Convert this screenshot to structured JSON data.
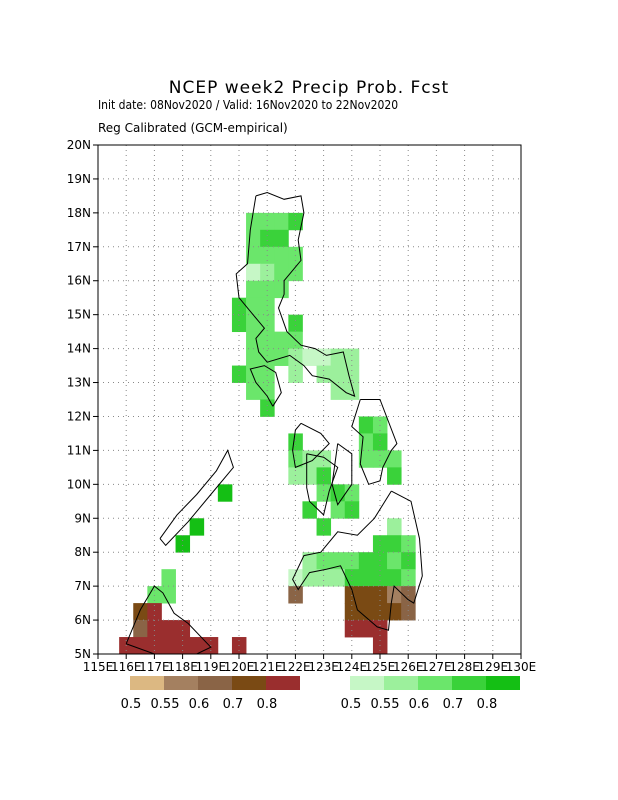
{
  "title": "NCEP week2 Precip Prob. Fcst",
  "subtitle": "Init date: 08Nov2020 / Valid: 16Nov2020 to 22Nov2020",
  "subtitle2": "Reg Calibrated (GCM-empirical)",
  "map": {
    "lon_range": [
      115,
      130
    ],
    "lat_range": [
      5,
      20
    ],
    "grid_step_deg": 0.5,
    "gridlines": "dotted",
    "x_tick_labels": [
      "115E",
      "116E",
      "117E",
      "118E",
      "119E",
      "120E",
      "121E",
      "122E",
      "123E",
      "124E",
      "125E",
      "126E",
      "127E",
      "128E",
      "129E",
      "130E"
    ],
    "y_tick_labels": [
      "5N",
      "6N",
      "7N",
      "8N",
      "9N",
      "10N",
      "11N",
      "12N",
      "13N",
      "14N",
      "15N",
      "16N",
      "17N",
      "18N",
      "19N",
      "20N"
    ]
  },
  "legend_below": {
    "labels": [
      "0.5",
      "0.55",
      "0.6",
      "0.7",
      "0.8"
    ],
    "colors": [
      "#dcb882",
      "#a48060",
      "#8a6446",
      "#7a4a14",
      "#9a2e2e"
    ]
  },
  "legend_above": {
    "labels": [
      "0.5",
      "0.55",
      "0.6",
      "0.7",
      "0.8"
    ],
    "colors": [
      "#c6f7c6",
      "#9cf09c",
      "#6be66b",
      "#3ad23a",
      "#14bf14"
    ]
  },
  "cells": [
    {
      "lon": 120.5,
      "lat": 17.75,
      "v": "g3"
    },
    {
      "lon": 121.0,
      "lat": 17.75,
      "v": "g3"
    },
    {
      "lon": 121.5,
      "lat": 17.75,
      "v": "g3"
    },
    {
      "lon": 122.0,
      "lat": 17.75,
      "v": "g4"
    },
    {
      "lon": 120.5,
      "lat": 17.25,
      "v": "g3"
    },
    {
      "lon": 121.0,
      "lat": 17.25,
      "v": "g4"
    },
    {
      "lon": 121.5,
      "lat": 17.25,
      "v": "g4"
    },
    {
      "lon": 120.5,
      "lat": 16.75,
      "v": "g3"
    },
    {
      "lon": 121.0,
      "lat": 16.75,
      "v": "g3"
    },
    {
      "lon": 121.5,
      "lat": 16.75,
      "v": "g3"
    },
    {
      "lon": 122.0,
      "lat": 16.75,
      "v": "g3"
    },
    {
      "lon": 120.5,
      "lat": 16.25,
      "v": "g1"
    },
    {
      "lon": 121.0,
      "lat": 16.25,
      "v": "g2"
    },
    {
      "lon": 121.5,
      "lat": 16.25,
      "v": "g3"
    },
    {
      "lon": 122.0,
      "lat": 16.25,
      "v": "g3"
    },
    {
      "lon": 120.5,
      "lat": 15.75,
      "v": "g3"
    },
    {
      "lon": 121.0,
      "lat": 15.75,
      "v": "g3"
    },
    {
      "lon": 121.5,
      "lat": 15.75,
      "v": "g3"
    },
    {
      "lon": 120.0,
      "lat": 15.25,
      "v": "g4"
    },
    {
      "lon": 120.5,
      "lat": 15.25,
      "v": "g3"
    },
    {
      "lon": 121.0,
      "lat": 15.25,
      "v": "g3"
    },
    {
      "lon": 120.0,
      "lat": 14.75,
      "v": "g4"
    },
    {
      "lon": 120.5,
      "lat": 14.75,
      "v": "g3"
    },
    {
      "lon": 121.0,
      "lat": 14.75,
      "v": "g3"
    },
    {
      "lon": 122.0,
      "lat": 14.75,
      "v": "g4"
    },
    {
      "lon": 120.5,
      "lat": 14.25,
      "v": "g3"
    },
    {
      "lon": 121.0,
      "lat": 14.25,
      "v": "g3"
    },
    {
      "lon": 121.5,
      "lat": 14.25,
      "v": "g3"
    },
    {
      "lon": 122.0,
      "lat": 14.25,
      "v": "g3"
    },
    {
      "lon": 120.5,
      "lat": 13.75,
      "v": "g3"
    },
    {
      "lon": 121.0,
      "lat": 13.75,
      "v": "g3"
    },
    {
      "lon": 121.5,
      "lat": 13.75,
      "v": "g3"
    },
    {
      "lon": 122.0,
      "lat": 13.75,
      "v": "g2"
    },
    {
      "lon": 122.5,
      "lat": 13.75,
      "v": "g1"
    },
    {
      "lon": 123.0,
      "lat": 13.75,
      "v": "g1"
    },
    {
      "lon": 123.5,
      "lat": 13.75,
      "v": "g2"
    },
    {
      "lon": 124.0,
      "lat": 13.75,
      "v": "g2"
    },
    {
      "lon": 120.0,
      "lat": 13.25,
      "v": "g4"
    },
    {
      "lon": 120.5,
      "lat": 13.25,
      "v": "g3"
    },
    {
      "lon": 121.0,
      "lat": 13.25,
      "v": "g3"
    },
    {
      "lon": 122.0,
      "lat": 13.25,
      "v": "g2"
    },
    {
      "lon": 123.0,
      "lat": 13.25,
      "v": "g2"
    },
    {
      "lon": 123.5,
      "lat": 13.25,
      "v": "g2"
    },
    {
      "lon": 124.0,
      "lat": 13.25,
      "v": "g2"
    },
    {
      "lon": 120.5,
      "lat": 12.75,
      "v": "g3"
    },
    {
      "lon": 121.0,
      "lat": 12.75,
      "v": "g3"
    },
    {
      "lon": 123.5,
      "lat": 12.75,
      "v": "g2"
    },
    {
      "lon": 124.0,
      "lat": 12.75,
      "v": "g2"
    },
    {
      "lon": 121.0,
      "lat": 12.25,
      "v": "g4"
    },
    {
      "lon": 124.5,
      "lat": 11.75,
      "v": "g4"
    },
    {
      "lon": 125.0,
      "lat": 11.75,
      "v": "g3"
    },
    {
      "lon": 122.0,
      "lat": 11.25,
      "v": "g4"
    },
    {
      "lon": 124.5,
      "lat": 11.25,
      "v": "g3"
    },
    {
      "lon": 125.0,
      "lat": 11.25,
      "v": "g4"
    },
    {
      "lon": 122.0,
      "lat": 10.75,
      "v": "g3"
    },
    {
      "lon": 122.5,
      "lat": 10.75,
      "v": "g2"
    },
    {
      "lon": 123.0,
      "lat": 10.75,
      "v": "g2"
    },
    {
      "lon": 124.5,
      "lat": 10.75,
      "v": "g3"
    },
    {
      "lon": 125.0,
      "lat": 10.75,
      "v": "g3"
    },
    {
      "lon": 125.5,
      "lat": 10.75,
      "v": "g3"
    },
    {
      "lon": 122.0,
      "lat": 10.25,
      "v": "g2"
    },
    {
      "lon": 122.5,
      "lat": 10.25,
      "v": "g2"
    },
    {
      "lon": 123.0,
      "lat": 10.25,
      "v": "g4"
    },
    {
      "lon": 125.5,
      "lat": 10.25,
      "v": "g4"
    },
    {
      "lon": 123.0,
      "lat": 9.75,
      "v": "g3"
    },
    {
      "lon": 123.5,
      "lat": 9.75,
      "v": "g4"
    },
    {
      "lon": 124.0,
      "lat": 9.75,
      "v": "g3"
    },
    {
      "lon": 119.5,
      "lat": 9.75,
      "v": "g5"
    },
    {
      "lon": 122.5,
      "lat": 9.25,
      "v": "g4"
    },
    {
      "lon": 123.5,
      "lat": 9.25,
      "v": "g3"
    },
    {
      "lon": 124.0,
      "lat": 9.25,
      "v": "g4"
    },
    {
      "lon": 123.0,
      "lat": 8.75,
      "v": "g4"
    },
    {
      "lon": 118.5,
      "lat": 8.75,
      "v": "g5"
    },
    {
      "lon": 125.5,
      "lat": 8.75,
      "v": "g2"
    },
    {
      "lon": 118.0,
      "lat": 8.25,
      "v": "g5"
    },
    {
      "lon": 125.0,
      "lat": 8.25,
      "v": "g4"
    },
    {
      "lon": 125.5,
      "lat": 8.25,
      "v": "g4"
    },
    {
      "lon": 126.0,
      "lat": 8.25,
      "v": "g3"
    },
    {
      "lon": 122.5,
      "lat": 7.75,
      "v": "g2"
    },
    {
      "lon": 123.0,
      "lat": 7.75,
      "v": "g3"
    },
    {
      "lon": 123.5,
      "lat": 7.75,
      "v": "g3"
    },
    {
      "lon": 124.0,
      "lat": 7.75,
      "v": "g3"
    },
    {
      "lon": 124.5,
      "lat": 7.75,
      "v": "g4"
    },
    {
      "lon": 125.0,
      "lat": 7.75,
      "v": "g4"
    },
    {
      "lon": 125.5,
      "lat": 7.75,
      "v": "g3"
    },
    {
      "lon": 126.0,
      "lat": 7.75,
      "v": "g4"
    },
    {
      "lon": 122.0,
      "lat": 7.25,
      "v": "g1"
    },
    {
      "lon": 122.5,
      "lat": 7.25,
      "v": "g2"
    },
    {
      "lon": 123.0,
      "lat": 7.25,
      "v": "g2"
    },
    {
      "lon": 123.5,
      "lat": 7.25,
      "v": "g2"
    },
    {
      "lon": 124.0,
      "lat": 7.25,
      "v": "g4"
    },
    {
      "lon": 124.5,
      "lat": 7.25,
      "v": "g4"
    },
    {
      "lon": 125.0,
      "lat": 7.25,
      "v": "g4"
    },
    {
      "lon": 125.5,
      "lat": 7.25,
      "v": "g4"
    },
    {
      "lon": 126.0,
      "lat": 7.25,
      "v": "g3"
    },
    {
      "lon": 117.5,
      "lat": 7.25,
      "v": "g3"
    },
    {
      "lon": 117.0,
      "lat": 6.75,
      "v": "g3"
    },
    {
      "lon": 117.5,
      "lat": 6.75,
      "v": "g3"
    },
    {
      "lon": 122.0,
      "lat": 6.75,
      "v": "b3"
    },
    {
      "lon": 124.0,
      "lat": 6.75,
      "v": "b4"
    },
    {
      "lon": 124.5,
      "lat": 6.75,
      "v": "b4"
    },
    {
      "lon": 125.0,
      "lat": 6.75,
      "v": "b4"
    },
    {
      "lon": 125.5,
      "lat": 6.75,
      "v": "b2"
    },
    {
      "lon": 126.0,
      "lat": 6.75,
      "v": "b3"
    },
    {
      "lon": 124.0,
      "lat": 6.25,
      "v": "b4"
    },
    {
      "lon": 124.5,
      "lat": 6.25,
      "v": "b4"
    },
    {
      "lon": 125.0,
      "lat": 6.25,
      "v": "b4"
    },
    {
      "lon": 125.5,
      "lat": 6.25,
      "v": "b4"
    },
    {
      "lon": 126.0,
      "lat": 6.25,
      "v": "b3"
    },
    {
      "lon": 116.5,
      "lat": 6.25,
      "v": "b4"
    },
    {
      "lon": 117.0,
      "lat": 6.25,
      "v": "b5"
    },
    {
      "lon": 124.0,
      "lat": 5.75,
      "v": "b5"
    },
    {
      "lon": 124.5,
      "lat": 5.75,
      "v": "b5"
    },
    {
      "lon": 125.0,
      "lat": 5.75,
      "v": "b5"
    },
    {
      "lon": 116.5,
      "lat": 5.75,
      "v": "b3"
    },
    {
      "lon": 117.0,
      "lat": 5.75,
      "v": "b5"
    },
    {
      "lon": 117.5,
      "lat": 5.75,
      "v": "b5"
    },
    {
      "lon": 118.0,
      "lat": 5.75,
      "v": "b5"
    },
    {
      "lon": 125.0,
      "lat": 5.25,
      "v": "b5"
    },
    {
      "lon": 116.0,
      "lat": 5.25,
      "v": "b5"
    },
    {
      "lon": 116.5,
      "lat": 5.25,
      "v": "b5"
    },
    {
      "lon": 117.0,
      "lat": 5.25,
      "v": "b5"
    },
    {
      "lon": 117.5,
      "lat": 5.25,
      "v": "b5"
    },
    {
      "lon": 118.0,
      "lat": 5.25,
      "v": "b5"
    },
    {
      "lon": 118.5,
      "lat": 5.25,
      "v": "b5"
    },
    {
      "lon": 119.0,
      "lat": 5.25,
      "v": "b5"
    },
    {
      "lon": 120.0,
      "lat": 5.25,
      "v": "b5"
    }
  ],
  "coastlines": [
    [
      [
        120.6,
        18.5
      ],
      [
        121.0,
        18.6
      ],
      [
        121.6,
        18.4
      ],
      [
        122.2,
        18.5
      ],
      [
        122.3,
        18.0
      ],
      [
        122.1,
        17.2
      ],
      [
        122.2,
        16.6
      ],
      [
        121.6,
        16.0
      ],
      [
        121.6,
        15.6
      ],
      [
        121.4,
        15.2
      ],
      [
        121.7,
        14.5
      ],
      [
        122.2,
        14.1
      ],
      [
        122.7,
        14.0
      ],
      [
        123.1,
        13.8
      ],
      [
        123.7,
        13.9
      ],
      [
        123.9,
        13.2
      ],
      [
        124.1,
        12.6
      ],
      [
        123.8,
        12.7
      ],
      [
        123.2,
        13.1
      ],
      [
        122.6,
        13.2
      ],
      [
        122.3,
        13.5
      ],
      [
        121.8,
        13.8
      ],
      [
        121.0,
        13.6
      ],
      [
        120.7,
        13.9
      ],
      [
        120.6,
        14.3
      ],
      [
        120.9,
        14.6
      ],
      [
        120.6,
        14.9
      ],
      [
        120.0,
        15.5
      ],
      [
        119.9,
        16.2
      ],
      [
        120.3,
        16.5
      ],
      [
        120.4,
        17.5
      ],
      [
        120.6,
        18.5
      ]
    ],
    [
      [
        121.2,
        12.3
      ],
      [
        121.5,
        12.7
      ],
      [
        121.3,
        13.3
      ],
      [
        120.9,
        13.5
      ],
      [
        120.4,
        13.4
      ],
      [
        120.6,
        13.0
      ],
      [
        121.0,
        12.6
      ],
      [
        121.2,
        12.3
      ]
    ],
    [
      [
        124.3,
        12.5
      ],
      [
        125.0,
        12.5
      ],
      [
        125.6,
        11.2
      ],
      [
        125.4,
        11.0
      ],
      [
        125.1,
        10.5
      ],
      [
        125.0,
        10.1
      ],
      [
        124.6,
        10.0
      ],
      [
        124.3,
        10.6
      ],
      [
        124.4,
        11.4
      ],
      [
        124.0,
        11.7
      ],
      [
        124.3,
        12.5
      ]
    ],
    [
      [
        122.2,
        11.8
      ],
      [
        122.9,
        11.5
      ],
      [
        123.2,
        11.2
      ],
      [
        122.6,
        10.7
      ],
      [
        122.0,
        10.5
      ],
      [
        121.9,
        11.0
      ],
      [
        122.0,
        11.6
      ],
      [
        122.2,
        11.8
      ]
    ],
    [
      [
        122.4,
        10.9
      ],
      [
        123.0,
        10.8
      ],
      [
        123.5,
        10.5
      ],
      [
        123.2,
        9.8
      ],
      [
        123.0,
        9.1
      ],
      [
        122.5,
        9.5
      ],
      [
        122.4,
        9.9
      ],
      [
        122.4,
        10.9
      ]
    ],
    [
      [
        123.5,
        11.2
      ],
      [
        124.0,
        10.9
      ],
      [
        124.0,
        10.0
      ],
      [
        123.5,
        9.4
      ],
      [
        123.3,
        10.0
      ],
      [
        123.5,
        11.2
      ]
    ],
    [
      [
        125.4,
        9.8
      ],
      [
        126.1,
        9.5
      ],
      [
        126.4,
        8.4
      ],
      [
        126.5,
        7.3
      ],
      [
        126.2,
        6.5
      ],
      [
        126.0,
        6.6
      ],
      [
        125.5,
        7.0
      ],
      [
        125.4,
        6.5
      ],
      [
        125.3,
        5.7
      ],
      [
        124.9,
        5.8
      ],
      [
        124.2,
        6.3
      ],
      [
        124.0,
        6.9
      ],
      [
        123.6,
        7.6
      ],
      [
        123.1,
        7.5
      ],
      [
        122.5,
        7.4
      ],
      [
        122.1,
        6.9
      ],
      [
        121.9,
        7.2
      ],
      [
        122.3,
        7.9
      ],
      [
        122.9,
        8.0
      ],
      [
        123.5,
        8.6
      ],
      [
        124.2,
        8.5
      ],
      [
        124.8,
        9.0
      ],
      [
        125.4,
        9.8
      ]
    ],
    [
      [
        117.2,
        8.4
      ],
      [
        117.8,
        9.1
      ],
      [
        118.5,
        9.7
      ],
      [
        119.2,
        10.4
      ],
      [
        119.6,
        11.0
      ],
      [
        119.8,
        10.5
      ],
      [
        119.0,
        9.7
      ],
      [
        118.2,
        8.9
      ],
      [
        117.4,
        8.2
      ],
      [
        117.2,
        8.4
      ]
    ],
    [
      [
        116.0,
        5.3
      ],
      [
        116.5,
        6.3
      ],
      [
        117.0,
        7.0
      ],
      [
        117.3,
        6.8
      ],
      [
        117.7,
        6.2
      ],
      [
        118.2,
        5.9
      ],
      [
        119.0,
        5.2
      ],
      [
        118.5,
        5.0
      ],
      [
        117.0,
        5.0
      ],
      [
        116.0,
        5.3
      ]
    ]
  ]
}
